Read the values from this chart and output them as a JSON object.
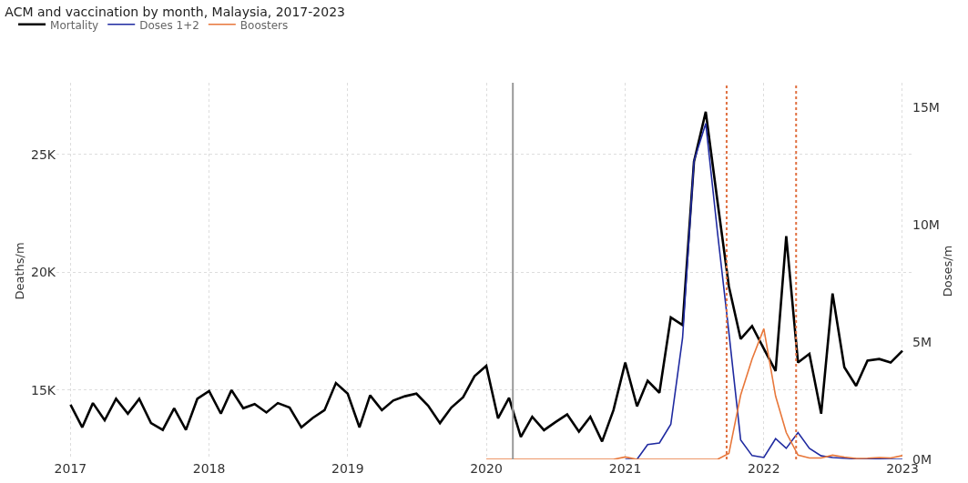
{
  "chart_data": {
    "type": "line",
    "title": "ACM and vaccination by month, Malaysia, 2017-2023",
    "ylabel": "Deaths/m",
    "y2label": "Doses/m",
    "x": [
      "2017-01",
      "2017-02",
      "2017-03",
      "2017-04",
      "2017-05",
      "2017-06",
      "2017-07",
      "2017-08",
      "2017-09",
      "2017-10",
      "2017-11",
      "2017-12",
      "2018-01",
      "2018-02",
      "2018-03",
      "2018-04",
      "2018-05",
      "2018-06",
      "2018-07",
      "2018-08",
      "2018-09",
      "2018-10",
      "2018-11",
      "2018-12",
      "2019-01",
      "2019-02",
      "2019-03",
      "2019-04",
      "2019-05",
      "2019-06",
      "2019-07",
      "2019-08",
      "2019-09",
      "2019-10",
      "2019-11",
      "2019-12",
      "2020-01",
      "2020-02",
      "2020-03",
      "2020-04",
      "2020-05",
      "2020-06",
      "2020-07",
      "2020-08",
      "2020-09",
      "2020-10",
      "2020-11",
      "2020-12",
      "2021-01",
      "2021-02",
      "2021-03",
      "2021-04",
      "2021-05",
      "2021-06",
      "2021-07",
      "2021-08",
      "2021-09",
      "2021-10",
      "2021-11",
      "2021-12",
      "2022-01",
      "2022-02",
      "2022-03",
      "2022-04",
      "2022-05",
      "2022-06",
      "2022-07",
      "2022-08",
      "2022-09",
      "2022-10",
      "2022-11",
      "2022-12",
      "2023-01"
    ],
    "series": [
      {
        "name": "Mortality",
        "color": "#000000",
        "values": [
          14380,
          13420,
          14450,
          13720,
          14630,
          14000,
          14630,
          13600,
          13310,
          14230,
          13310,
          14630,
          14960,
          14000,
          15000,
          14230,
          14410,
          14050,
          14450,
          14260,
          13420,
          13820,
          14150,
          15300,
          14850,
          13420,
          14780,
          14150,
          14560,
          14740,
          14850,
          14340,
          13600,
          14260,
          14700,
          15590,
          16030,
          13800,
          14670,
          13010,
          13870,
          13300,
          13640,
          13970,
          13240,
          13870,
          12820,
          14150,
          16170,
          14310,
          15400,
          14890,
          18090,
          17760,
          24700,
          26820,
          23000,
          19400,
          17170,
          17720,
          16760,
          15810,
          21540,
          16170,
          16540,
          14000,
          19100,
          15970,
          15180,
          16250,
          16320,
          16170,
          16670
        ]
      },
      {
        "name": "Doses 1+2",
        "color": "#1f2aa0",
        "axis": "y2",
        "x": [
          "2021-01",
          "2021-02",
          "2021-03",
          "2021-04",
          "2021-05",
          "2021-06",
          "2021-07",
          "2021-08",
          "2021-09",
          "2021-10",
          "2021-11",
          "2021-12",
          "2022-01",
          "2022-02",
          "2022-03",
          "2022-04",
          "2022-05",
          "2022-06",
          "2022-07",
          "2022-08",
          "2022-09",
          "2022-10",
          "2022-11",
          "2022-12",
          "2023-01"
        ],
        "values": [
          0,
          0,
          630000,
          700000,
          1490000,
          5170000,
          12700000,
          14300000,
          9650000,
          5400000,
          820000,
          160000,
          80000,
          880000,
          470000,
          1140000,
          470000,
          150000,
          80000,
          50000,
          20000,
          10000,
          10000,
          0,
          0
        ]
      },
      {
        "name": "Boosters",
        "color": "#e8773a",
        "axis": "y2",
        "x": [
          "2020-01",
          "2020-02",
          "2020-03",
          "2020-04",
          "2020-05",
          "2020-06",
          "2020-07",
          "2020-08",
          "2020-09",
          "2020-10",
          "2020-11",
          "2020-12",
          "2021-01",
          "2021-02",
          "2021-03",
          "2021-04",
          "2021-05",
          "2021-06",
          "2021-07",
          "2021-08",
          "2021-09",
          "2021-10",
          "2021-11",
          "2021-12",
          "2022-01",
          "2022-02",
          "2022-03",
          "2022-04",
          "2022-05",
          "2022-06",
          "2022-07",
          "2022-08",
          "2022-09",
          "2022-10",
          "2022-11",
          "2022-12",
          "2023-01"
        ],
        "values": [
          0,
          0,
          0,
          0,
          0,
          0,
          0,
          0,
          0,
          0,
          0,
          0,
          100000,
          0,
          0,
          0,
          0,
          0,
          0,
          0,
          0,
          250000,
          2740000,
          4270000,
          5560000,
          2690000,
          1140000,
          180000,
          60000,
          60000,
          180000,
          100000,
          40000,
          50000,
          80000,
          60000,
          160000
        ]
      }
    ],
    "xlim": [
      "2016-11-25",
      "2023-01-25"
    ],
    "xticks": [
      {
        "value": "2017-01-01",
        "label": "2017"
      },
      {
        "value": "2018-01-01",
        "label": "2018"
      },
      {
        "value": "2019-01-01",
        "label": "2019"
      },
      {
        "value": "2020-01-01",
        "label": "2020"
      },
      {
        "value": "2021-01-01",
        "label": "2021"
      },
      {
        "value": "2022-01-01",
        "label": "2022"
      },
      {
        "value": "2023-01-01",
        "label": "2023"
      }
    ],
    "ylim": [
      12060,
      28050
    ],
    "yticks": [
      {
        "value": 15000,
        "label": "15K"
      },
      {
        "value": 20000,
        "label": "20K"
      },
      {
        "value": 25000,
        "label": "25K"
      }
    ],
    "y2lim": [
      0,
      16030000
    ],
    "y2ticks": [
      {
        "value": 0,
        "label": "0M"
      },
      {
        "value": 5000000,
        "label": "5M"
      },
      {
        "value": 10000000,
        "label": "10M"
      },
      {
        "value": 15000000,
        "label": "15M"
      }
    ],
    "ref_lines": [
      {
        "axis": "x",
        "value": "2020-03-11",
        "color": "#999999",
        "line_style": "solid"
      },
      {
        "axis": "x",
        "value": "2021-09-25",
        "color": "#e07040",
        "line_style": "dotted"
      },
      {
        "axis": "x",
        "value": "2022-03-27",
        "color": "#e07040",
        "line_style": "dotted"
      }
    ],
    "grid": true,
    "legend": "top left",
    "line_style": "solid",
    "marker": "none"
  }
}
